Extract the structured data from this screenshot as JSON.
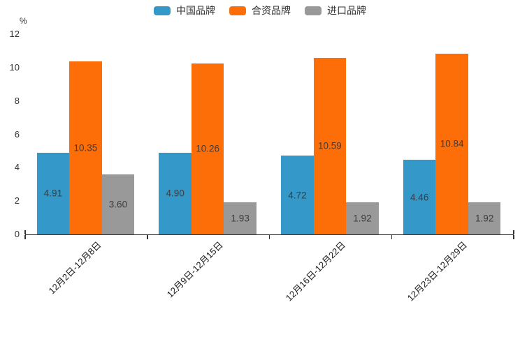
{
  "chart_data": {
    "type": "bar",
    "title": "",
    "y_unit_label": "%",
    "categories": [
      "12月2日-12月8日",
      "12月9日-12月15日",
      "12月16日-12月22日",
      "12月23日-12月29日"
    ],
    "series": [
      {
        "name": "中国品牌",
        "slug": "china-brands",
        "color": "#3498c8",
        "values": [
          4.91,
          4.9,
          4.72,
          4.46
        ]
      },
      {
        "name": "合资品牌",
        "slug": "joint-venture-brands",
        "color": "#fd6e08",
        "values": [
          10.35,
          10.26,
          10.59,
          10.84
        ]
      },
      {
        "name": "进口品牌",
        "slug": "imported-brands",
        "color": "#999999",
        "values": [
          3.6,
          1.93,
          1.92,
          1.92
        ]
      }
    ],
    "ylim": [
      0,
      12
    ],
    "yticks": [
      0,
      2,
      4,
      6,
      8,
      10,
      12
    ],
    "label_decimals": 2,
    "legend_position": "top",
    "grid": false,
    "colors": {
      "axis": "#333333",
      "value_label_text": "#3d3d3d",
      "tick_label_text": "#333333",
      "background": "#ffffff"
    }
  }
}
